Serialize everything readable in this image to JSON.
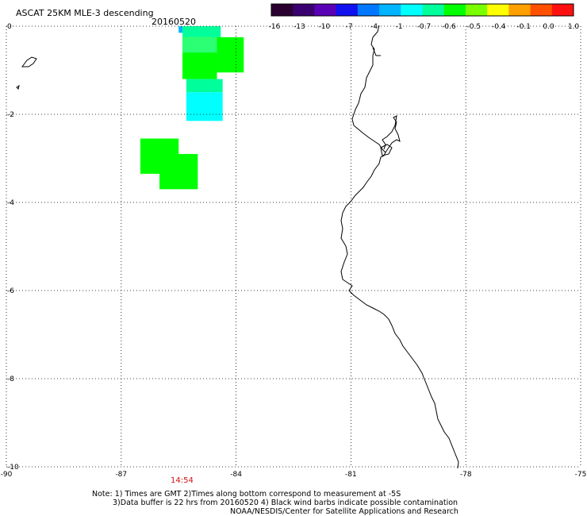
{
  "header": {
    "title": "ASCAT 25KM MLE-3 descending",
    "date": "20160520"
  },
  "colorbar": {
    "labels": [
      "-16",
      "-13",
      "-10",
      "-7",
      "-4",
      "-1",
      "-0.7",
      "-0.6",
      "-0.5",
      "-0.4",
      "-0.1",
      "0.0",
      "1.0"
    ],
    "colors": [
      "#2a0030",
      "#3b0070",
      "#5a00b4",
      "#1010f0",
      "#0078ff",
      "#00b4ff",
      "#00ffff",
      "#00ff9a",
      "#00ff00",
      "#7aff00",
      "#ffff00",
      "#ffa000",
      "#ff5000",
      "#ff1010"
    ]
  },
  "map": {
    "lon_range": [
      -90,
      -75
    ],
    "lat_range": [
      -10,
      0
    ],
    "lon_ticks": [
      "-90",
      "-87",
      "-84",
      "-81",
      "-78",
      "-75"
    ],
    "lat_ticks": [
      "0",
      "-2",
      "-4",
      "-6",
      "-8",
      "-10"
    ],
    "grid": "dotted",
    "time_labels": [
      {
        "text": "14:54",
        "lon": -85.4
      }
    ]
  },
  "swaths": [
    {
      "lon": [
        -85.5,
        -85.4
      ],
      "lat": [
        -0.15,
        0.0
      ],
      "color": "#00b4ff"
    },
    {
      "lon": [
        -85.4,
        -84.4
      ],
      "lat": [
        -0.25,
        0.0
      ],
      "color": "#00ff9a"
    },
    {
      "lon": [
        -85.4,
        -84.5
      ],
      "lat": [
        -1.2,
        -0.25
      ],
      "color": "#00ff00"
    },
    {
      "lon": [
        -84.5,
        -83.8
      ],
      "lat": [
        -1.05,
        -0.25
      ],
      "color": "#00ff00"
    },
    {
      "lon": [
        -85.4,
        -84.5
      ],
      "lat": [
        -0.6,
        -0.25
      ],
      "color": "#2cff74"
    },
    {
      "lon": [
        -85.3,
        -84.35
      ],
      "lat": [
        -1.5,
        -1.2
      ],
      "color": "#00ff9a"
    },
    {
      "lon": [
        -85.3,
        -84.35
      ],
      "lat": [
        -2.15,
        -1.5
      ],
      "color": "#00ffff"
    },
    {
      "lon": [
        -86.5,
        -85.5
      ],
      "lat": [
        -3.35,
        -2.55
      ],
      "color": "#00ff00"
    },
    {
      "lon": [
        -86.0,
        -85.0
      ],
      "lat": [
        -3.7,
        -2.9
      ],
      "color": "#00ff00"
    }
  ],
  "footer": {
    "note_line1": "Note: 1) Times are GMT 2)Times along bottom correspond to measurement at -5S",
    "note_line2": "3)Data buffer is 22 hrs from 20160520 4) Black wind barbs indicate possible contamination",
    "note_line3": "NOAA/NESDIS/Center for Satellite Applications and Research"
  }
}
